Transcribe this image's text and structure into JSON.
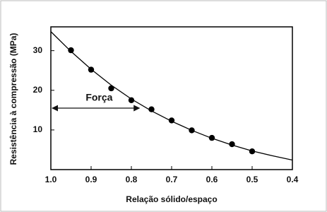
{
  "chart_data": {
    "type": "scatter",
    "x_label": "Relação sólido/espaço",
    "y_label": "Resistência à compressão (MPa)",
    "x": [
      0.95,
      0.9,
      0.85,
      0.8,
      0.75,
      0.7,
      0.65,
      0.6,
      0.55,
      0.5
    ],
    "values": [
      30.1,
      25.2,
      20.5,
      17.5,
      15.2,
      12.4,
      9.9,
      8.0,
      6.4,
      4.6
    ],
    "color": "#000000",
    "curve": {
      "x": [
        1.0,
        0.95,
        0.9,
        0.85,
        0.8,
        0.75,
        0.7,
        0.65,
        0.6,
        0.55,
        0.5,
        0.45,
        0.4
      ],
      "values": [
        34.8,
        29.8,
        25.3,
        21.3,
        17.8,
        14.8,
        12.2,
        9.9,
        7.9,
        6.2,
        4.7,
        3.5,
        2.4
      ]
    },
    "annotation": {
      "text": "Força",
      "x": 0.88,
      "y": 18,
      "arrow": {
        "x": [
          1.0,
          0.78
        ],
        "y": 15.5
      }
    },
    "xlim": [
      1.0,
      0.4
    ],
    "ylim": [
      0,
      36
    ],
    "xticks": [
      {
        "value": 1.0,
        "label": "1.0"
      },
      0.9,
      0.8,
      0.7,
      0.6,
      0.5,
      0.4
    ],
    "yticks": [
      10,
      20,
      30
    ]
  }
}
